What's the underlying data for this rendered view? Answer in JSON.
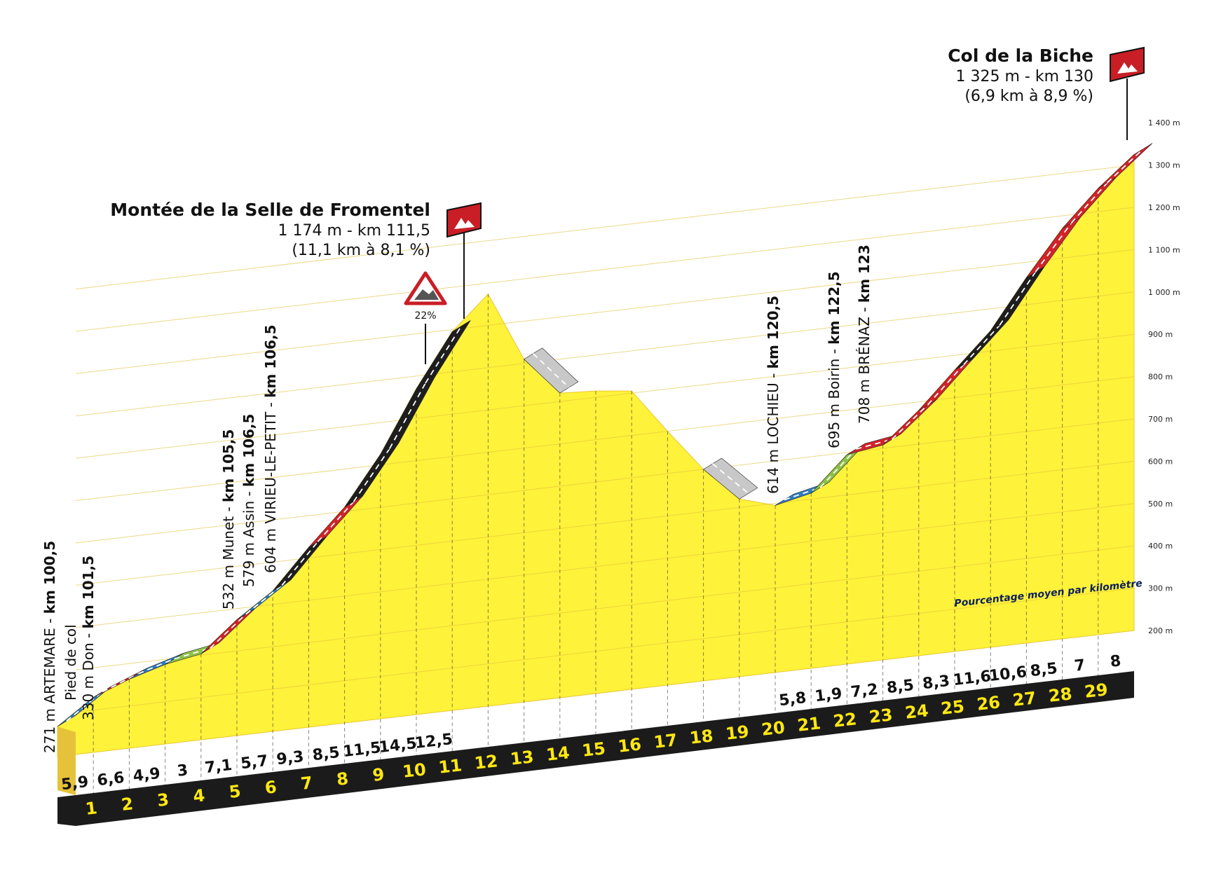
{
  "chart_data": {
    "type": "area",
    "title": "",
    "unit_y": "m",
    "y_ticks": [
      "200 m",
      "300 m",
      "400 m",
      "500 m",
      "600 m",
      "700 m",
      "800 m",
      "900 m",
      "1 000 m",
      "1 100 m",
      "1 200 m",
      "1 300 m",
      "1 400 m"
    ],
    "ylim": [
      200,
      1400
    ],
    "x_km_markers": [
      1,
      2,
      3,
      4,
      5,
      6,
      7,
      8,
      9,
      10,
      11,
      12,
      13,
      14,
      15,
      16,
      17,
      18,
      19,
      20,
      21,
      22,
      23,
      24,
      25,
      26,
      27,
      28,
      29
    ],
    "elevation_profile": [
      {
        "km": 0,
        "alt": 271
      },
      {
        "km": 1,
        "alt": 330
      },
      {
        "km": 2,
        "alt": 363
      },
      {
        "km": 3,
        "alt": 388
      },
      {
        "km": 4,
        "alt": 403
      },
      {
        "km": 5,
        "alt": 474
      },
      {
        "km": 6,
        "alt": 532
      },
      {
        "km": 7,
        "alt": 625
      },
      {
        "km": 8,
        "alt": 710
      },
      {
        "km": 9,
        "alt": 825
      },
      {
        "km": 10,
        "alt": 970
      },
      {
        "km": 11,
        "alt": 1095
      },
      {
        "km": 12,
        "alt": 1174
      },
      {
        "km": 13,
        "alt": 1010
      },
      {
        "km": 14,
        "alt": 920
      },
      {
        "km": 15,
        "alt": 915
      },
      {
        "km": 16,
        "alt": 905
      },
      {
        "km": 17,
        "alt": 800
      },
      {
        "km": 18,
        "alt": 700
      },
      {
        "km": 19,
        "alt": 620
      },
      {
        "km": 20,
        "alt": 595
      },
      {
        "km": 21,
        "alt": 614
      },
      {
        "km": 22,
        "alt": 695
      },
      {
        "km": 23,
        "alt": 708
      },
      {
        "km": 24,
        "alt": 780
      },
      {
        "km": 25,
        "alt": 865
      },
      {
        "km": 26,
        "alt": 948
      },
      {
        "km": 27,
        "alt": 1064
      },
      {
        "km": 28,
        "alt": 1170
      },
      {
        "km": 29,
        "alt": 1255
      },
      {
        "km": 30,
        "alt": 1325
      }
    ],
    "segments": [
      {
        "type": "blue",
        "value": "5,9"
      },
      {
        "type": "red",
        "value": "6,6"
      },
      {
        "type": "blue",
        "value": "4,9"
      },
      {
        "type": "green",
        "value": "3"
      },
      {
        "type": "red",
        "value": "7,1"
      },
      {
        "type": "blue",
        "value": "5,7"
      },
      {
        "type": "black",
        "value": "9,3"
      },
      {
        "type": "red",
        "value": "8,5"
      },
      {
        "type": "black",
        "value": "11,5"
      },
      {
        "type": "black",
        "value": "14,5"
      },
      {
        "type": "black",
        "value": "12,5"
      },
      {
        "type": "none",
        "value": ""
      },
      {
        "type": "none",
        "value": ""
      },
      {
        "type": "grey",
        "value": ""
      },
      {
        "type": "none",
        "value": ""
      },
      {
        "type": "none",
        "value": ""
      },
      {
        "type": "none",
        "value": ""
      },
      {
        "type": "none",
        "value": ""
      },
      {
        "type": "grey",
        "value": ""
      },
      {
        "type": "none",
        "value": ""
      },
      {
        "type": "blue",
        "value": "5,8"
      },
      {
        "type": "green",
        "value": "1,9"
      },
      {
        "type": "red",
        "value": "7,2"
      },
      {
        "type": "red",
        "value": "8,5"
      },
      {
        "type": "red",
        "value": "8,3"
      },
      {
        "type": "black",
        "value": "11,6"
      },
      {
        "type": "black",
        "value": "10,6"
      },
      {
        "type": "red",
        "value": "8,5"
      },
      {
        "type": "red",
        "value": "7"
      },
      {
        "type": "red",
        "value": "8"
      }
    ],
    "colors": {
      "fill": "#fff23a",
      "fill_edge": "#e8c832",
      "base_black": "#1b1b1b",
      "blue": "#2f7dc0",
      "red": "#d1232a",
      "green": "#8cc04a",
      "black": "#1e1e1e",
      "grey": "#c8c8c8",
      "grid": "#e0c03a",
      "km_text": "#ffe812"
    },
    "legend": "Pourcentage moyen par kilomètre",
    "steep_sign": {
      "label": "22%"
    }
  },
  "climbs": [
    {
      "name": "Montée de la Selle de Fromentel",
      "line1": "1 174 m - km 111,5",
      "line2": "(11,1 km à 8,1 %)"
    },
    {
      "name": "Col de la Biche",
      "line1": "1 325 m - km 130",
      "line2": "(6,9 km à 8,9 %)"
    }
  ],
  "places": [
    {
      "name": "271 m ARTEMARE - ",
      "km": "km 100,5"
    },
    {
      "name": "Pied de col",
      "km": ""
    },
    {
      "name": "330 m Don - ",
      "km": "km 101,5"
    },
    {
      "name": "532 m Munet - ",
      "km": "km 105,5"
    },
    {
      "name": "579 m Assin - ",
      "km": "km 106,5"
    },
    {
      "name": "604 m VIRIEU-LE-PETIT - ",
      "km": "km 106,5"
    },
    {
      "name": "614 m LOCHIEU - ",
      "km": "km 120,5"
    },
    {
      "name": "695 m Boirin - ",
      "km": "km 122,5"
    },
    {
      "name": "708 m BRÉNAZ - ",
      "km": "km 123"
    }
  ]
}
